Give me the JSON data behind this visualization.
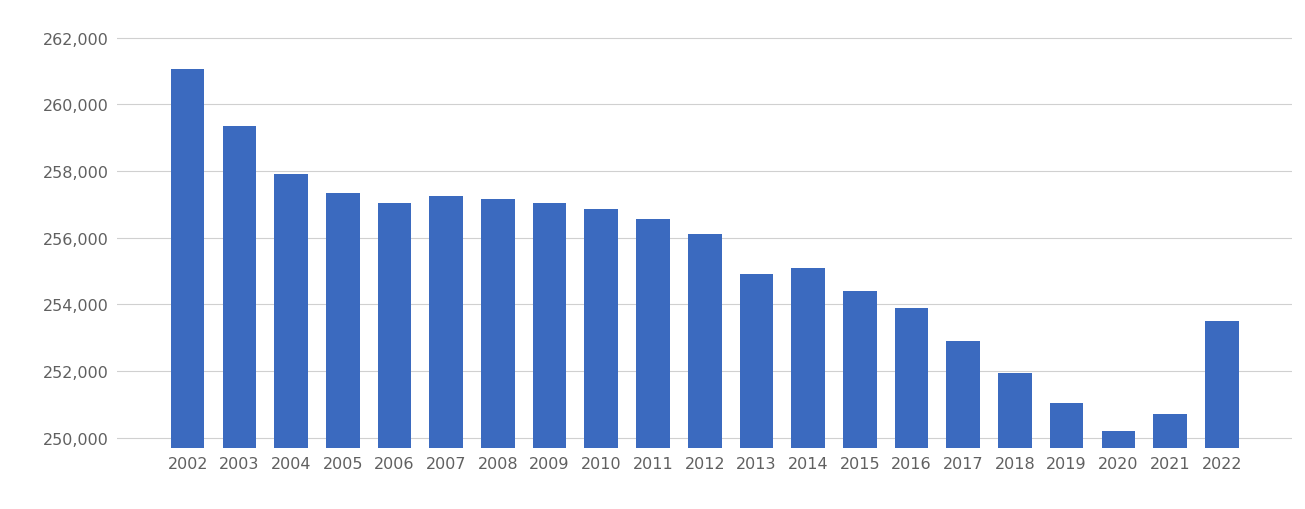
{
  "years": [
    "2002",
    "2003",
    "2004",
    "2005",
    "2006",
    "2007",
    "2008",
    "2009",
    "2010",
    "2011",
    "2012",
    "2013",
    "2014",
    "2015",
    "2016",
    "2017",
    "2018",
    "2019",
    "2020",
    "2021",
    "2022"
  ],
  "values": [
    261050,
    259350,
    257900,
    257350,
    257050,
    257250,
    257150,
    257050,
    256850,
    256550,
    256100,
    254900,
    255100,
    254400,
    253900,
    252900,
    251950,
    251050,
    250200,
    250700,
    253500
  ],
  "bar_color": "#3b6abf",
  "background_color": "#ffffff",
  "grid_color": "#d0d0d0",
  "ylim_min": 249700,
  "ylim_max": 262700,
  "yticks": [
    250000,
    252000,
    254000,
    256000,
    258000,
    260000,
    262000
  ],
  "tick_color": "#606060",
  "tick_fontsize": 11.5,
  "bar_width": 0.65
}
